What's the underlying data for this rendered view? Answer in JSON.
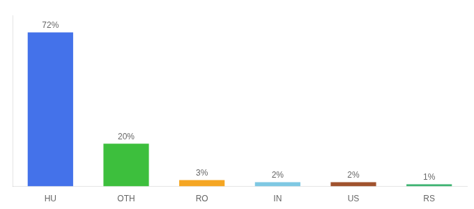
{
  "chart_data": {
    "type": "bar",
    "categories": [
      "HU",
      "OTH",
      "RO",
      "IN",
      "US",
      "RS"
    ],
    "values": [
      72,
      20,
      3,
      2,
      2,
      1
    ],
    "colors": [
      "#4472EA",
      "#3DBF3D",
      "#F5A623",
      "#7EC8E3",
      "#A0522D",
      "#3CB371"
    ],
    "value_labels": [
      "72%",
      "20%",
      "3%",
      "2%",
      "2%",
      "1%"
    ],
    "data_labels": true,
    "ylim": [
      0,
      80
    ],
    "grid": false,
    "tick_labels": "x"
  }
}
